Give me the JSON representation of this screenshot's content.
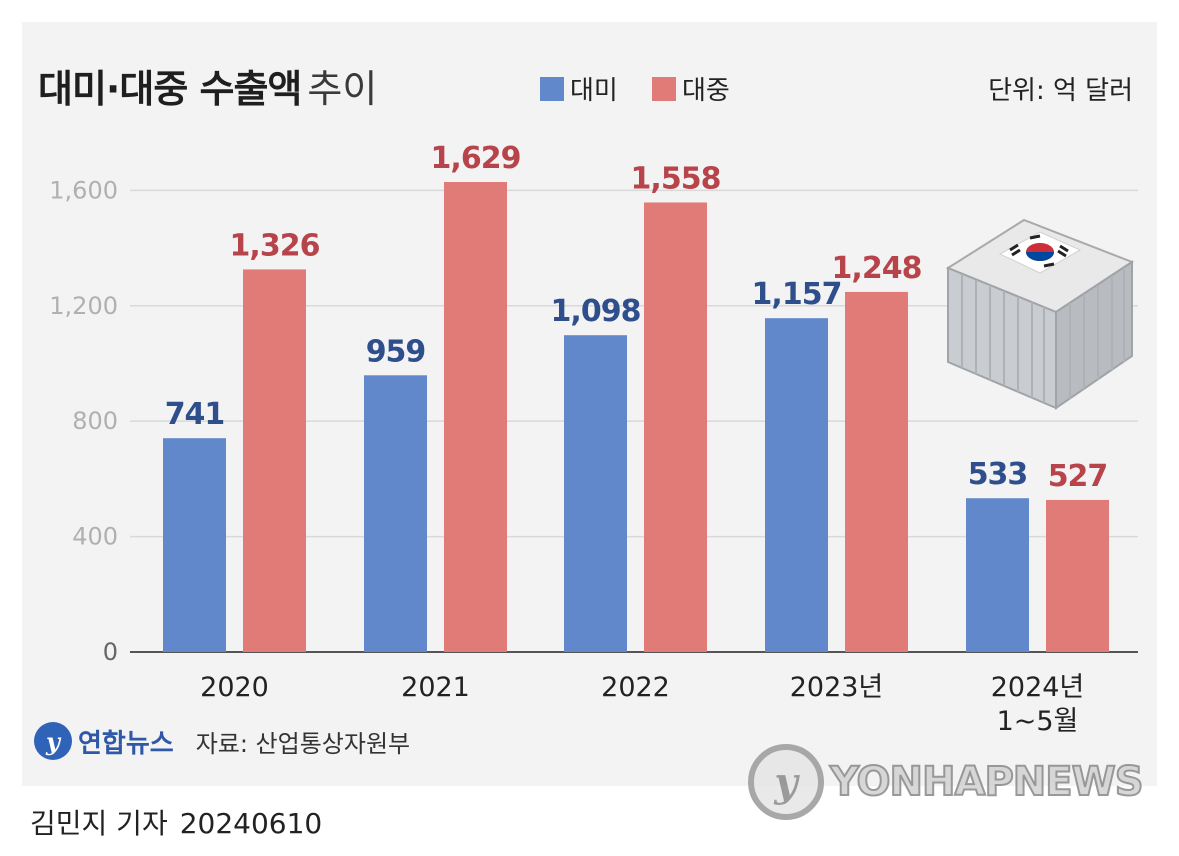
{
  "header": {
    "title_main": "대미·대중 수출액",
    "title_sub": "추이",
    "unit": "단위: 억 달러"
  },
  "footer": {
    "brand": "연합뉴스",
    "source": "자료: 산업통상자원부",
    "watermark": "YONHAPNEWS",
    "reporter": "김민지 기자",
    "date": "20240610"
  },
  "colors": {
    "us": "#6088cb",
    "china": "#e07b78",
    "us_label": "#2f4f8c",
    "china_label": "#b8444b",
    "grid": "#d9d9d9",
    "tick": "#b0b0b0"
  },
  "chart_data": {
    "type": "bar",
    "categories": [
      "2020",
      "2021",
      "2022",
      "2023년",
      "2024년\n1~5월"
    ],
    "series": [
      {
        "name": "대미",
        "values": [
          741,
          959,
          1098,
          1157,
          533
        ],
        "labels": [
          "741",
          "959",
          "1,098",
          "1,157",
          "533"
        ]
      },
      {
        "name": "대중",
        "values": [
          1326,
          1629,
          1558,
          1248,
          527
        ],
        "labels": [
          "1,326",
          "1,629",
          "1,558",
          "1,248",
          "527"
        ]
      }
    ],
    "yticks": [
      0,
      400,
      800,
      1200,
      1600
    ],
    "ytick_labels": [
      "0",
      "400",
      "800",
      "1,200",
      "1,600"
    ],
    "ylim": [
      0,
      1629
    ],
    "grid": true,
    "legend_position": "top"
  }
}
